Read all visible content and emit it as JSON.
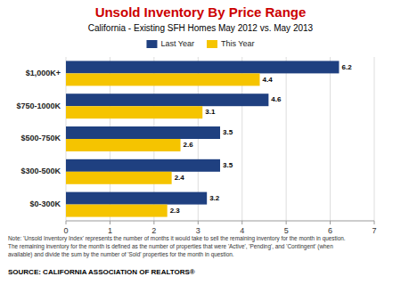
{
  "chart_data": {
    "type": "bar",
    "orientation": "horizontal",
    "title": "Unsold Inventory By Price Range",
    "subtitle": "California - Existing SFH Homes May 2012 vs. May 2013",
    "categories": [
      "$0-300K",
      "$300-500K",
      "$500-750K",
      "$750-1000K",
      "$1,000K+"
    ],
    "series": [
      {
        "name": "Last Year",
        "color": "#1f4080",
        "values": [
          3.2,
          3.5,
          3.5,
          4.6,
          6.2
        ]
      },
      {
        "name": "This Year",
        "color": "#f5c400",
        "values": [
          2.3,
          2.4,
          2.6,
          3.1,
          4.4
        ]
      }
    ],
    "xlim": [
      0,
      7
    ],
    "xticks": [
      0,
      1,
      2,
      3,
      4,
      5,
      6,
      7
    ],
    "grid": true,
    "legend": "top",
    "data_labels": true,
    "annotations": [
      "Note: 'Unsold Inventory Index' represents the number of months it would take to sell the remaining inventory for the month in question.",
      "The remaining inventory for the month is defined as the number of properties that were 'Active', 'Pending', and 'Contingent' (when",
      "available) and divide the sum by the number of 'Sold' properties for the month in question.",
      "SOURCE: CALIFORNIA ASSOCIATION OF REALTORS®"
    ]
  }
}
